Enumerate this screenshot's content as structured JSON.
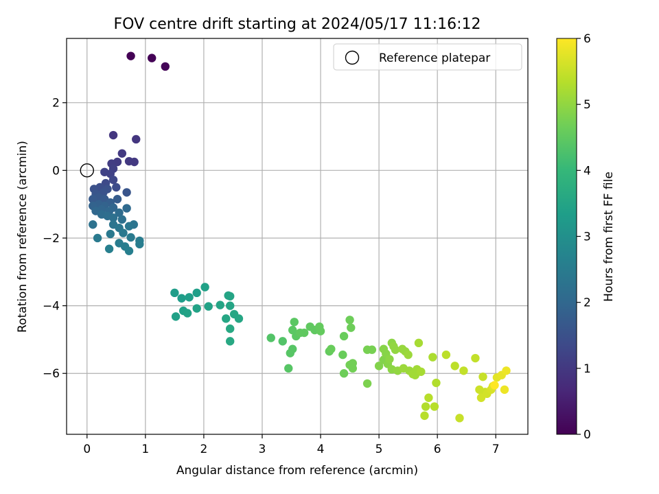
{
  "chart_data": {
    "type": "scatter",
    "title": "FOV centre drift starting at 2024/05/17 11:16:12",
    "xlabel": "Angular distance from reference (arcmin)",
    "ylabel": "Rotation from reference (arcmin)",
    "xlim": [
      -0.35,
      7.55
    ],
    "ylim": [
      -7.8,
      3.9
    ],
    "xticks": [
      0,
      1,
      2,
      3,
      4,
      5,
      6,
      7
    ],
    "xtick_labels": [
      "0",
      "1",
      "2",
      "3",
      "4",
      "5",
      "6",
      "7"
    ],
    "yticks": [
      -6,
      -4,
      -2,
      0,
      2
    ],
    "ytick_labels": [
      "−6",
      "−4",
      "−2",
      "0",
      "2"
    ],
    "grid": true,
    "legend": {
      "position": "upper-right",
      "entries": [
        "Reference platepar"
      ]
    },
    "reference_point": {
      "x": 0,
      "y": 0,
      "marker": "open-circle"
    },
    "colorbar": {
      "label": "Hours from first FF file",
      "colormap": "viridis",
      "range": [
        0,
        6
      ],
      "ticks": [
        0,
        1,
        2,
        3,
        4,
        5,
        6
      ],
      "tick_labels": [
        "0",
        "1",
        "2",
        "3",
        "4",
        "5",
        "6"
      ]
    },
    "colors": {
      "viridis": [
        "#440154",
        "#482878",
        "#3e4989",
        "#31688e",
        "#26828e",
        "#1f9e89",
        "#35b779",
        "#6ece58",
        "#b5de2b",
        "#fde725"
      ],
      "grid": "#b0b0b0"
    },
    "points": [
      [
        0.75,
        3.38,
        0.02
      ],
      [
        1.11,
        3.32,
        0.04
      ],
      [
        1.34,
        3.07,
        0.06
      ],
      [
        0.45,
        1.04,
        0.95
      ],
      [
        0.84,
        0.92,
        0.95
      ],
      [
        0.6,
        0.5,
        1.0
      ],
      [
        0.52,
        0.25,
        1.05
      ],
      [
        0.72,
        0.27,
        1.0
      ],
      [
        0.81,
        0.25,
        1.0
      ],
      [
        0.42,
        0.2,
        1.1
      ],
      [
        0.45,
        0.05,
        1.15
      ],
      [
        0.3,
        -0.05,
        1.2
      ],
      [
        0.4,
        -0.1,
        1.2
      ],
      [
        0.45,
        -0.28,
        1.3
      ],
      [
        0.32,
        -0.38,
        1.35
      ],
      [
        0.5,
        -0.5,
        1.4
      ],
      [
        0.22,
        -0.5,
        1.45
      ],
      [
        0.12,
        -0.55,
        1.5
      ],
      [
        0.35,
        -0.55,
        1.5
      ],
      [
        0.28,
        -0.65,
        1.55
      ],
      [
        0.15,
        -0.7,
        1.6
      ],
      [
        0.68,
        -0.65,
        1.6
      ],
      [
        0.2,
        -0.8,
        1.65
      ],
      [
        0.1,
        -0.85,
        1.7
      ],
      [
        0.3,
        -0.85,
        1.7
      ],
      [
        0.52,
        -0.85,
        1.75
      ],
      [
        0.4,
        -0.95,
        1.8
      ],
      [
        0.2,
        -1.0,
        1.85
      ],
      [
        0.1,
        -1.05,
        1.9
      ],
      [
        0.3,
        -1.05,
        1.9
      ],
      [
        0.45,
        -1.1,
        1.95
      ],
      [
        0.25,
        -1.15,
        1.95
      ],
      [
        0.15,
        -1.2,
        2.0
      ],
      [
        0.38,
        -1.2,
        2.0
      ],
      [
        0.68,
        -1.12,
        2.05
      ],
      [
        0.55,
        -1.25,
        2.1
      ],
      [
        0.25,
        -1.3,
        2.1
      ],
      [
        0.35,
        -1.35,
        2.15
      ],
      [
        0.45,
        -1.4,
        2.2
      ],
      [
        0.6,
        -1.45,
        2.2
      ],
      [
        0.1,
        -1.6,
        2.25
      ],
      [
        0.45,
        -1.6,
        2.3
      ],
      [
        0.8,
        -1.6,
        2.3
      ],
      [
        0.72,
        -1.65,
        2.35
      ],
      [
        0.55,
        -1.7,
        2.35
      ],
      [
        0.62,
        -1.85,
        2.4
      ],
      [
        0.4,
        -1.88,
        2.4
      ],
      [
        0.18,
        -2.0,
        2.45
      ],
      [
        0.75,
        -1.98,
        2.45
      ],
      [
        0.9,
        -2.08,
        2.5
      ],
      [
        0.55,
        -2.15,
        2.5
      ],
      [
        0.9,
        -2.18,
        2.55
      ],
      [
        0.65,
        -2.25,
        2.55
      ],
      [
        0.38,
        -2.32,
        2.6
      ],
      [
        0.72,
        -2.38,
        2.6
      ],
      [
        1.5,
        -3.62,
        3.3
      ],
      [
        1.62,
        -3.78,
        3.3
      ],
      [
        1.75,
        -3.75,
        3.35
      ],
      [
        1.88,
        -3.62,
        3.35
      ],
      [
        2.02,
        -3.45,
        3.4
      ],
      [
        1.65,
        -4.15,
        3.4
      ],
      [
        1.52,
        -4.32,
        3.4
      ],
      [
        1.72,
        -4.22,
        3.45
      ],
      [
        1.88,
        -4.08,
        3.45
      ],
      [
        2.08,
        -4.02,
        3.45
      ],
      [
        2.28,
        -3.98,
        3.5
      ],
      [
        2.42,
        -3.7,
        3.5
      ],
      [
        2.45,
        -3.72,
        3.5
      ],
      [
        2.45,
        -4.0,
        3.5
      ],
      [
        2.52,
        -4.25,
        3.55
      ],
      [
        2.6,
        -4.38,
        3.55
      ],
      [
        2.38,
        -4.38,
        3.55
      ],
      [
        2.45,
        -4.68,
        3.6
      ],
      [
        2.45,
        -5.05,
        3.6
      ],
      [
        3.15,
        -4.95,
        4.35
      ],
      [
        3.35,
        -5.05,
        4.35
      ],
      [
        3.48,
        -5.4,
        4.4
      ],
      [
        3.52,
        -5.28,
        4.4
      ],
      [
        3.45,
        -5.85,
        4.4
      ],
      [
        3.55,
        -4.48,
        4.45
      ],
      [
        3.52,
        -4.72,
        4.45
      ],
      [
        3.58,
        -4.9,
        4.45
      ],
      [
        3.65,
        -4.8,
        4.5
      ],
      [
        3.72,
        -4.8,
        4.5
      ],
      [
        3.82,
        -4.62,
        4.5
      ],
      [
        3.9,
        -4.72,
        4.5
      ],
      [
        3.98,
        -4.62,
        4.55
      ],
      [
        4.0,
        -4.75,
        4.55
      ],
      [
        4.15,
        -5.35,
        4.55
      ],
      [
        4.18,
        -5.28,
        4.6
      ],
      [
        4.38,
        -5.45,
        4.6
      ],
      [
        4.4,
        -4.9,
        4.6
      ],
      [
        4.4,
        -6.0,
        4.65
      ],
      [
        4.5,
        -4.42,
        4.65
      ],
      [
        4.52,
        -4.65,
        4.65
      ],
      [
        4.5,
        -5.75,
        4.7
      ],
      [
        4.55,
        -5.7,
        4.7
      ],
      [
        4.55,
        -5.85,
        4.7
      ],
      [
        4.8,
        -5.3,
        4.75
      ],
      [
        4.88,
        -5.3,
        4.75
      ],
      [
        4.8,
        -6.3,
        4.8
      ],
      [
        5.0,
        -5.78,
        4.85
      ],
      [
        5.08,
        -5.6,
        4.85
      ],
      [
        5.08,
        -5.28,
        4.9
      ],
      [
        5.12,
        -5.42,
        4.9
      ],
      [
        5.15,
        -5.72,
        4.9
      ],
      [
        5.18,
        -5.58,
        4.95
      ],
      [
        5.22,
        -5.1,
        4.95
      ],
      [
        5.22,
        -5.88,
        4.95
      ],
      [
        5.25,
        -5.2,
        5.0
      ],
      [
        5.28,
        -5.3,
        5.0
      ],
      [
        5.32,
        -5.92,
        5.0
      ],
      [
        5.4,
        -5.28,
        5.05
      ],
      [
        5.45,
        -5.35,
        5.05
      ],
      [
        5.5,
        -5.45,
        5.1
      ],
      [
        5.42,
        -5.85,
        5.1
      ],
      [
        5.52,
        -5.92,
        5.1
      ],
      [
        5.58,
        -6.02,
        5.15
      ],
      [
        5.62,
        -6.05,
        5.15
      ],
      [
        5.65,
        -5.88,
        5.15
      ],
      [
        5.72,
        -5.95,
        5.2
      ],
      [
        5.68,
        -5.1,
        5.2
      ],
      [
        5.92,
        -5.52,
        5.25
      ],
      [
        5.98,
        -6.28,
        5.3
      ],
      [
        5.8,
        -6.98,
        5.3
      ],
      [
        5.85,
        -6.72,
        5.35
      ],
      [
        5.78,
        -7.25,
        5.35
      ],
      [
        5.95,
        -6.98,
        5.35
      ],
      [
        6.15,
        -5.45,
        5.4
      ],
      [
        6.3,
        -5.78,
        5.4
      ],
      [
        6.45,
        -5.92,
        5.45
      ],
      [
        6.65,
        -5.55,
        5.45
      ],
      [
        6.38,
        -7.32,
        5.5
      ],
      [
        6.78,
        -6.1,
        5.5
      ],
      [
        6.72,
        -6.48,
        5.55
      ],
      [
        6.82,
        -6.55,
        5.55
      ],
      [
        6.75,
        -6.72,
        5.6
      ],
      [
        6.85,
        -6.6,
        5.6
      ],
      [
        6.92,
        -6.48,
        5.65
      ],
      [
        6.95,
        -6.38,
        5.7
      ],
      [
        7.02,
        -6.12,
        5.75
      ],
      [
        7.1,
        -6.05,
        5.8
      ],
      [
        7.18,
        -5.92,
        5.85
      ],
      [
        7.15,
        -6.48,
        5.85
      ],
      [
        6.98,
        -6.35,
        6.0
      ]
    ]
  }
}
